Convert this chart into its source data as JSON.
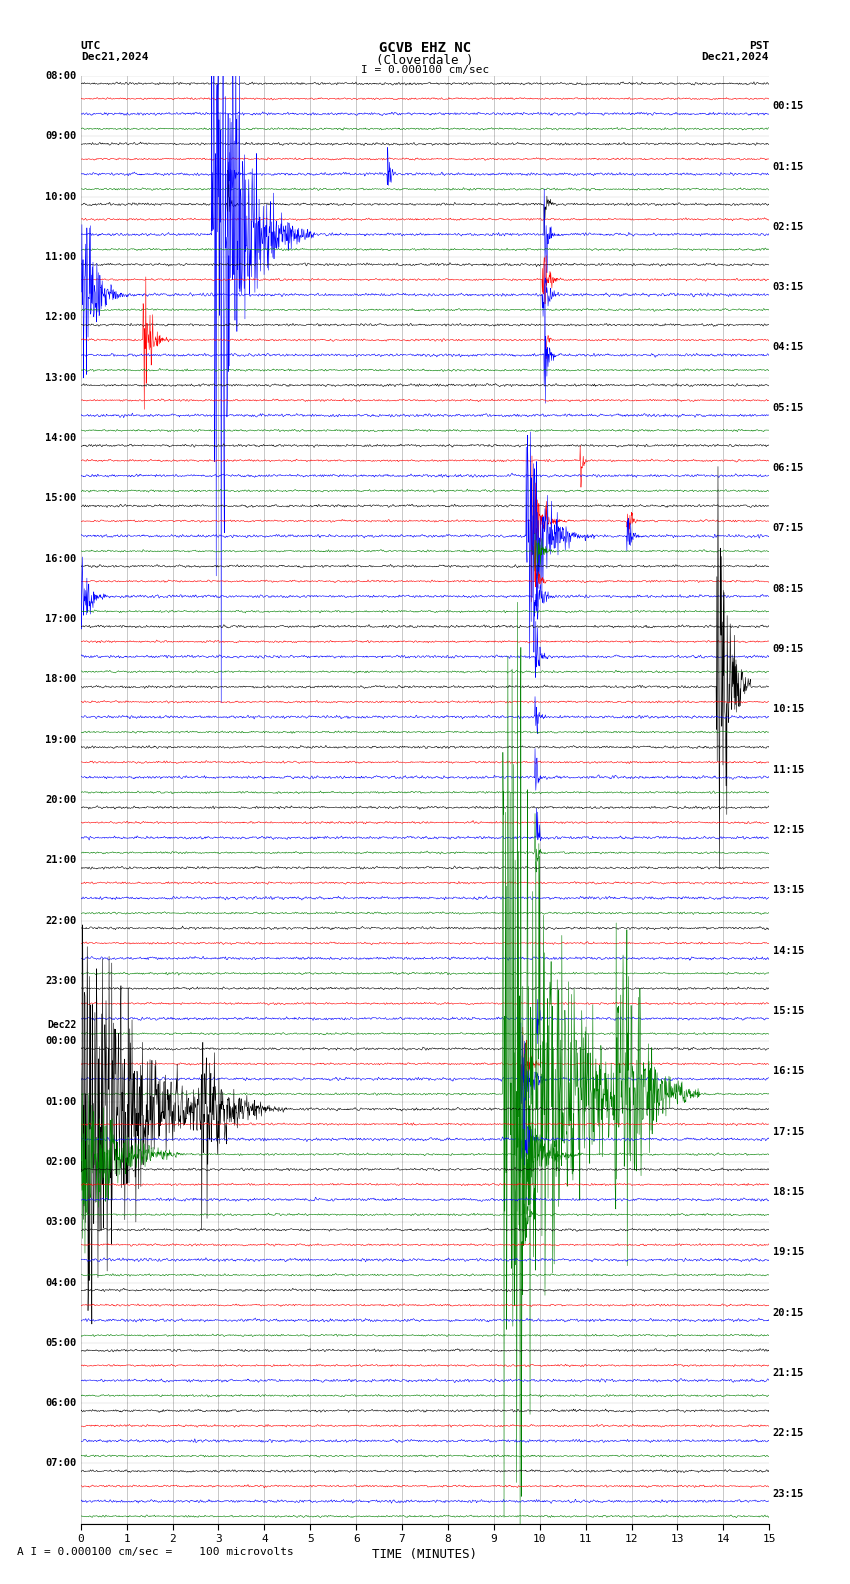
{
  "title_line1": "GCVB EHZ NC",
  "title_line2": "(Cloverdale )",
  "scale_label": "I = 0.000100 cm/sec",
  "utc_label": "UTC",
  "utc_date": "Dec21,2024",
  "pst_label": "PST",
  "pst_date": "Dec21,2024",
  "bottom_label": "A I = 0.000100 cm/sec =    100 microvolts",
  "xlabel": "TIME (MINUTES)",
  "xlim": [
    0,
    15
  ],
  "xticks": [
    0,
    1,
    2,
    3,
    4,
    5,
    6,
    7,
    8,
    9,
    10,
    11,
    12,
    13,
    14,
    15
  ],
  "bg_color": "#ffffff",
  "trace_colors": [
    "black",
    "red",
    "blue",
    "green"
  ],
  "figwidth": 8.5,
  "figheight": 15.84,
  "left_times_utc": [
    "08:00",
    "09:00",
    "10:00",
    "11:00",
    "12:00",
    "13:00",
    "14:00",
    "15:00",
    "16:00",
    "17:00",
    "18:00",
    "19:00",
    "20:00",
    "21:00",
    "22:00",
    "23:00",
    "00:00",
    "01:00",
    "02:00",
    "03:00",
    "04:00",
    "05:00",
    "06:00",
    "07:00"
  ],
  "dec22_row": 16,
  "right_times_pst": [
    "00:15",
    "01:15",
    "02:15",
    "03:15",
    "04:15",
    "05:15",
    "06:15",
    "07:15",
    "08:15",
    "09:15",
    "10:15",
    "11:15",
    "12:15",
    "13:15",
    "14:15",
    "15:15",
    "16:15",
    "17:15",
    "18:15",
    "19:15",
    "20:15",
    "21:15",
    "22:15",
    "23:15"
  ],
  "seed": 42,
  "noise_scale_black": 0.06,
  "noise_scale_red": 0.05,
  "noise_scale_blue": 0.07,
  "noise_scale_green": 0.05,
  "trace_amplitude": 0.35
}
